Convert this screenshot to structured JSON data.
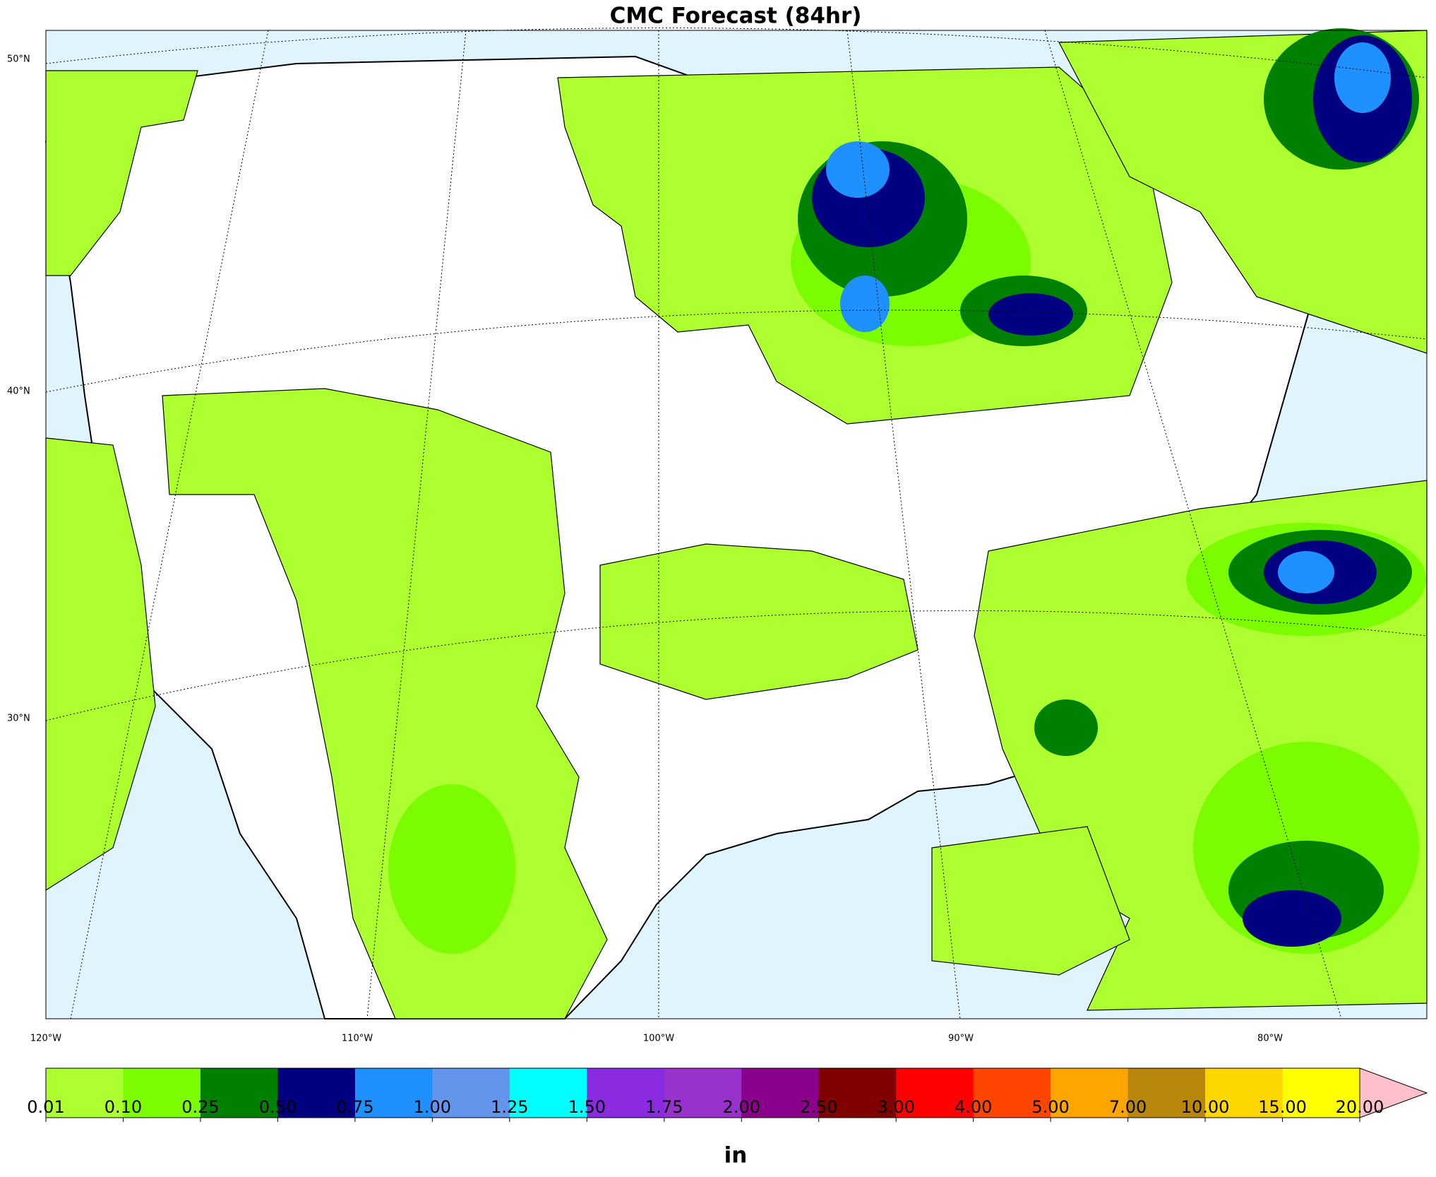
{
  "title": "CMC Forecast (84hr)",
  "lat_labels": [
    "50°N",
    "40°N",
    "30°N"
  ],
  "lon_labels": [
    "120°W",
    "110°W",
    "100°W",
    "90°W",
    "80°W"
  ],
  "colorbar": {
    "levels": [
      {
        "value": 0.01,
        "label": "0.01"
      },
      {
        "value": 0.1,
        "label": "0.10"
      },
      {
        "value": 0.25,
        "label": "0.25"
      },
      {
        "value": 0.5,
        "label": "0.50"
      },
      {
        "value": 0.75,
        "label": "0.75"
      },
      {
        "value": 1,
        "label": "1.00"
      },
      {
        "value": 1.25,
        "label": "1.25"
      },
      {
        "value": 1.5,
        "label": "1.50"
      },
      {
        "value": 1.75,
        "label": "1.75"
      },
      {
        "value": 2,
        "label": "2.00"
      },
      {
        "value": 2.5,
        "label": "2.50"
      },
      {
        "value": 3,
        "label": "3.00"
      },
      {
        "value": 4,
        "label": "4.00"
      },
      {
        "value": 5,
        "label": "5.00"
      },
      {
        "value": 7,
        "label": "7.00"
      },
      {
        "value": 10,
        "label": "10.00"
      },
      {
        "value": 15,
        "label": "15.00"
      },
      {
        "value": 20,
        "label": "20.00"
      }
    ],
    "colors": [
      "#adff2f",
      "#7cfc00",
      "#008000",
      "#000080",
      "#1e90ff",
      "#6495ed",
      "#00ffff",
      "#8a2be2",
      "#9932cc",
      "#8b008b",
      "#800000",
      "#ff0000",
      "#ff4500",
      "#ffa500",
      "#b8860b",
      "#ffd700",
      "#ffff00"
    ],
    "extend_color": "#ffc0cb",
    "unit": "in"
  }
}
